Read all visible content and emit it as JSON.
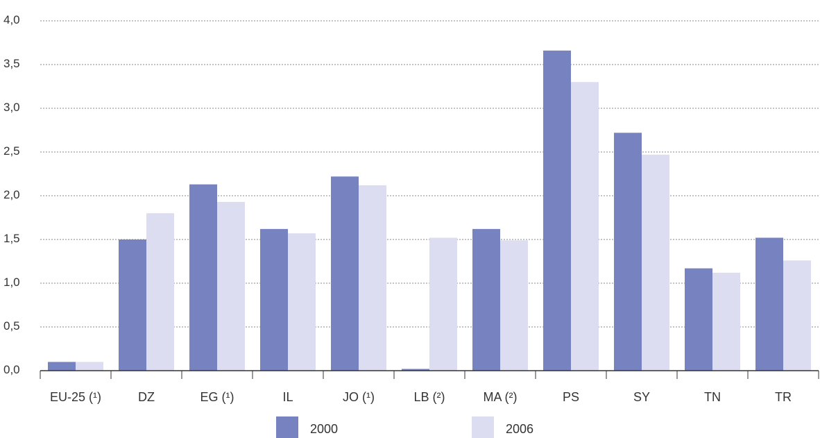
{
  "chart_data": {
    "type": "bar",
    "title": "",
    "xlabel": "",
    "ylabel": "",
    "ylim": [
      0,
      4
    ],
    "yticks": [
      "0,0",
      "0,5",
      "1,0",
      "1,5",
      "2,0",
      "2,5",
      "3,0",
      "3,5",
      "4,0"
    ],
    "grid": true,
    "legend_position": "bottom",
    "categories": [
      "EU-25 (¹)",
      "DZ",
      "EG (¹)",
      "IL",
      "JO (¹)",
      "LB (²)",
      "MA (²)",
      "PS",
      "SY",
      "TN",
      "TR"
    ],
    "series": [
      {
        "name": "2000",
        "color": "#7783c1",
        "values": [
          0.1,
          1.5,
          2.13,
          1.62,
          2.22,
          0.02,
          1.62,
          3.66,
          2.72,
          1.17,
          1.52
        ]
      },
      {
        "name": "2006",
        "color": "#dcddf0",
        "values": [
          0.1,
          1.8,
          1.93,
          1.57,
          2.12,
          1.52,
          1.49,
          3.3,
          2.47,
          1.12,
          1.26
        ]
      }
    ]
  }
}
